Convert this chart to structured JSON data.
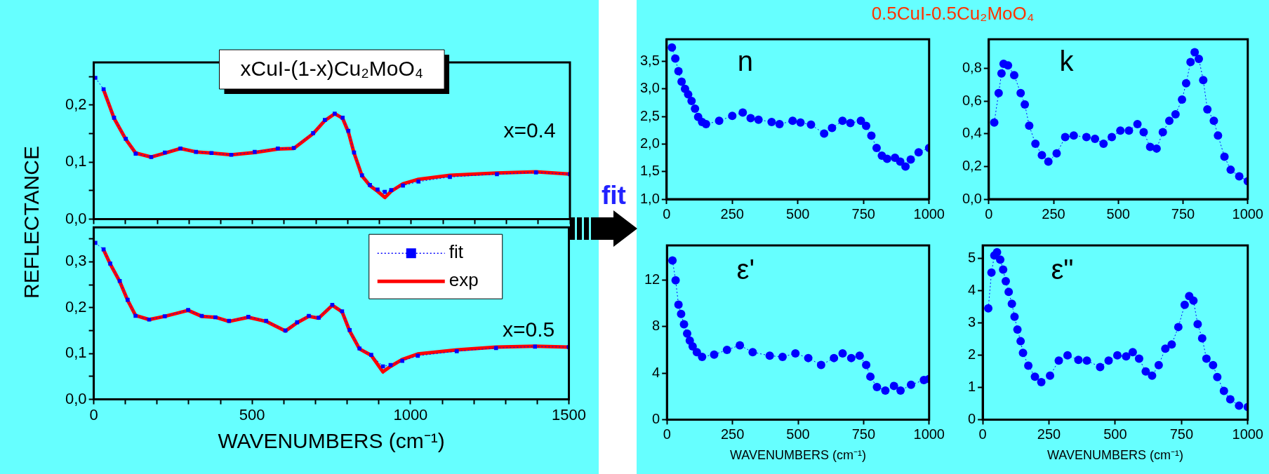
{
  "chart_data": [
    {
      "type": "line",
      "title": "xCuI-(1-x)Cu₂MoO₄",
      "ylabel": "REFLECTANCE",
      "annotations": [
        "x=0.4"
      ],
      "tick_labels": "y",
      "xlim": [
        0,
        1500
      ],
      "ylim": [
        0,
        0.275
      ],
      "xticks": [
        0,
        {
          "value": 100,
          "label": null
        },
        {
          "value": 200,
          "label": null
        },
        {
          "value": 300,
          "label": null
        },
        {
          "value": 400,
          "label": null
        },
        500,
        {
          "value": 600,
          "label": null
        },
        {
          "value": 700,
          "label": null
        },
        {
          "value": 800,
          "label": null
        },
        {
          "value": 900,
          "label": null
        },
        1000,
        {
          "value": 1100,
          "label": null
        },
        {
          "value": 1200,
          "label": null
        },
        {
          "value": 1300,
          "label": null
        },
        {
          "value": 1400,
          "label": null
        },
        1500
      ],
      "yticks": [
        {
          "value": 0,
          "label": "0,0"
        },
        {
          "value": 0.05,
          "label": null
        },
        {
          "value": 0.1,
          "label": "0,1"
        },
        {
          "value": 0.15,
          "label": null
        },
        {
          "value": 0.2,
          "label": "0,2"
        },
        {
          "value": 0.25,
          "label": null
        }
      ],
      "x": [
        5,
        31,
        64,
        101,
        132,
        181,
        224,
        273,
        322,
        371,
        433,
        507,
        580,
        630,
        691,
        728,
        759,
        784,
        802,
        820,
        845,
        870,
        894,
        917,
        937,
        974,
        1023,
        1122,
        1270,
        1393,
        1500
      ],
      "series": [
        {
          "color": "#0000ff",
          "marker": "square",
          "line_style": "dotted",
          "values": [
            0.248,
            0.228,
            0.178,
            0.141,
            0.115,
            0.109,
            0.117,
            0.124,
            0.118,
            0.116,
            0.113,
            0.118,
            0.124,
            0.125,
            0.151,
            0.174,
            0.185,
            0.178,
            0.155,
            0.117,
            0.077,
            0.06,
            0.052,
            0.048,
            0.051,
            0.059,
            0.066,
            0.074,
            0.079,
            0.082,
            0.079
          ]
        },
        {
          "color": "#ff0000",
          "marker": "none",
          "line_style": "solid",
          "values": [
            null,
            0.227,
            0.177,
            0.14,
            0.116,
            0.109,
            0.116,
            0.124,
            0.118,
            0.116,
            0.113,
            0.117,
            0.123,
            0.124,
            0.15,
            0.173,
            0.185,
            0.177,
            0.153,
            0.116,
            0.076,
            0.059,
            0.049,
            0.038,
            0.049,
            0.062,
            0.07,
            0.077,
            0.081,
            0.083,
            0.079
          ]
        }
      ]
    },
    {
      "type": "line",
      "xlabel": "WAVENUMBERS (cm⁻¹)",
      "annotations": [
        "x=0.5",
        "fit"
      ],
      "legend": "top right",
      "xlim": [
        0,
        1500
      ],
      "ylim": [
        0,
        0.375
      ],
      "xticks": [
        0,
        {
          "value": 100,
          "label": null
        },
        {
          "value": 200,
          "label": null
        },
        {
          "value": 300,
          "label": null
        },
        {
          "value": 400,
          "label": null
        },
        500,
        {
          "value": 600,
          "label": null
        },
        {
          "value": 700,
          "label": null
        },
        {
          "value": 800,
          "label": null
        },
        {
          "value": 900,
          "label": null
        },
        1000,
        {
          "value": 1100,
          "label": null
        },
        {
          "value": 1200,
          "label": null
        },
        {
          "value": 1300,
          "label": null
        },
        {
          "value": 1400,
          "label": null
        },
        1500
      ],
      "yticks": [
        {
          "value": 0,
          "label": "0,0"
        },
        {
          "value": 0.05,
          "label": null
        },
        {
          "value": 0.1,
          "label": "0,1"
        },
        {
          "value": 0.15,
          "label": null
        },
        {
          "value": 0.2,
          "label": "0,2"
        },
        {
          "value": 0.25,
          "label": null
        },
        {
          "value": 0.3,
          "label": "0,3"
        },
        {
          "value": 0.35,
          "label": null
        }
      ],
      "x": [
        5,
        31,
        52,
        82,
        107,
        132,
        175,
        224,
        298,
        341,
        384,
        427,
        488,
        544,
        605,
        642,
        679,
        710,
        753,
        784,
        808,
        839,
        876,
        913,
        937,
        974,
        1023,
        1146,
        1270,
        1393,
        1500
      ],
      "series": [
        {
          "name": "fit",
          "color": "#0000ff",
          "marker": "square",
          "line_style": "dotted",
          "values": [
            0.341,
            0.327,
            0.296,
            0.258,
            0.217,
            0.182,
            0.174,
            0.181,
            0.195,
            0.182,
            0.179,
            0.171,
            0.18,
            0.171,
            0.15,
            0.168,
            0.182,
            0.178,
            0.206,
            0.192,
            0.151,
            0.111,
            0.097,
            0.072,
            0.075,
            0.084,
            0.095,
            0.105,
            0.112,
            0.115,
            0.114
          ]
        },
        {
          "name": "exp",
          "color": "#ff0000",
          "marker": "none",
          "line_style": "solid",
          "values": [
            null,
            0.326,
            0.295,
            0.257,
            0.216,
            0.183,
            0.174,
            0.181,
            0.194,
            0.181,
            0.179,
            0.17,
            0.179,
            0.17,
            0.149,
            0.167,
            0.181,
            0.177,
            0.205,
            0.191,
            0.149,
            0.11,
            0.096,
            0.06,
            0.072,
            0.087,
            0.099,
            0.108,
            0.114,
            0.116,
            0.114
          ]
        }
      ]
    },
    {
      "type": "line",
      "title": "0.5CuI-0.5Cu₂MoO₄",
      "annotations": [
        "n"
      ],
      "xlim": [
        0,
        1000
      ],
      "ylim": [
        1,
        3.9
      ],
      "xticks": [
        0,
        250,
        500,
        750,
        1000
      ],
      "yticks": [
        {
          "value": 1,
          "label": "1,0"
        },
        {
          "value": 1.5,
          "label": "1,5"
        },
        {
          "value": 2,
          "label": "2,0"
        },
        {
          "value": 2.5,
          "label": "2,5"
        },
        {
          "value": 3,
          "label": "3,0"
        },
        {
          "value": 3.5,
          "label": "3,5"
        }
      ],
      "x": [
        20,
        33,
        45,
        57,
        70,
        82,
        95,
        108,
        120,
        135,
        150,
        200,
        250,
        290,
        320,
        350,
        400,
        430,
        480,
        510,
        550,
        600,
        630,
        670,
        700,
        740,
        760,
        780,
        800,
        820,
        840,
        870,
        890,
        910,
        930,
        960,
        1000
      ],
      "series": [
        {
          "color": "#0000ff",
          "marker": "circle",
          "line_style": "dotted",
          "values": [
            3.75,
            3.55,
            3.32,
            3.13,
            3.0,
            2.9,
            2.78,
            2.64,
            2.49,
            2.4,
            2.36,
            2.42,
            2.51,
            2.57,
            2.47,
            2.44,
            2.4,
            2.36,
            2.42,
            2.39,
            2.35,
            2.19,
            2.29,
            2.42,
            2.38,
            2.42,
            2.33,
            2.15,
            1.93,
            1.79,
            1.73,
            1.75,
            1.68,
            1.59,
            1.72,
            1.85,
            1.93
          ]
        }
      ]
    },
    {
      "type": "line",
      "annotations": [
        "k"
      ],
      "xlim": [
        0,
        1000
      ],
      "ylim": [
        0,
        0.98
      ],
      "xticks": [
        0,
        250,
        500,
        750,
        1000
      ],
      "yticks": [
        {
          "value": 0,
          "label": "0,0"
        },
        {
          "value": 0.2,
          "label": "0,2"
        },
        {
          "value": 0.4,
          "label": "0,4"
        },
        {
          "value": 0.6,
          "label": "0,6"
        },
        {
          "value": 0.8,
          "label": "0,8"
        }
      ],
      "x": [
        21,
        38,
        49,
        57,
        74,
        98,
        123,
        139,
        156,
        180,
        205,
        230,
        262,
        295,
        328,
        377,
        410,
        443,
        475,
        508,
        541,
        574,
        598,
        623,
        648,
        672,
        697,
        721,
        746,
        762,
        779,
        795,
        811,
        828,
        844,
        869,
        885,
        910,
        934,
        967,
        1000
      ],
      "series": [
        {
          "color": "#0000ff",
          "marker": "circle",
          "line_style": "dotted",
          "values": [
            0.47,
            0.65,
            0.77,
            0.83,
            0.82,
            0.76,
            0.65,
            0.58,
            0.45,
            0.34,
            0.27,
            0.23,
            0.28,
            0.38,
            0.39,
            0.38,
            0.37,
            0.34,
            0.38,
            0.42,
            0.42,
            0.46,
            0.41,
            0.32,
            0.31,
            0.41,
            0.48,
            0.52,
            0.61,
            0.71,
            0.84,
            0.9,
            0.86,
            0.73,
            0.55,
            0.48,
            0.39,
            0.26,
            0.18,
            0.14,
            0.11
          ]
        }
      ]
    },
    {
      "type": "line",
      "xlabel": "WAVENUMBERS (cm⁻¹)",
      "annotations": [
        "ε'"
      ],
      "xlim": [
        0,
        1000
      ],
      "ylim": [
        0,
        15
      ],
      "xticks": [
        0,
        250,
        500,
        750,
        1000
      ],
      "yticks": [
        0,
        4,
        8,
        12
      ],
      "x": [
        21,
        33,
        44,
        54,
        65,
        77,
        87,
        98,
        114,
        134,
        180,
        229,
        278,
        327,
        392,
        441,
        490,
        539,
        588,
        637,
        670,
        703,
        735,
        760,
        776,
        801,
        833,
        866,
        891,
        931,
        980,
        1000
      ],
      "series": [
        {
          "color": "#0000ff",
          "marker": "circle",
          "line_style": "dotted",
          "values": [
            13.7,
            12.0,
            9.9,
            9.1,
            8.2,
            7.4,
            6.8,
            6.3,
            5.8,
            5.4,
            5.6,
            6.0,
            6.4,
            5.8,
            5.5,
            5.4,
            5.7,
            5.3,
            4.7,
            5.3,
            5.7,
            5.3,
            5.5,
            4.7,
            3.7,
            2.8,
            2.5,
            2.9,
            2.5,
            3.0,
            3.4,
            3.5
          ]
        }
      ]
    },
    {
      "type": "line",
      "xlabel": "WAVENUMBERS (cm⁻¹)",
      "annotations": [
        "ε\""
      ],
      "xlim": [
        0,
        1000
      ],
      "ylim": [
        0,
        5.4
      ],
      "xticks": [
        0,
        250,
        500,
        750,
        1000
      ],
      "yticks": [
        0,
        1,
        2,
        3,
        4,
        5
      ],
      "x": [
        21,
        33,
        44,
        54,
        66,
        77,
        87,
        98,
        110,
        120,
        131,
        143,
        152,
        172,
        197,
        221,
        254,
        287,
        320,
        361,
        393,
        443,
        475,
        508,
        541,
        566,
        590,
        615,
        639,
        664,
        689,
        713,
        738,
        762,
        779,
        795,
        811,
        828,
        844,
        869,
        885,
        910,
        934,
        967,
        1000
      ],
      "series": [
        {
          "color": "#0000ff",
          "marker": "circle",
          "line_style": "dotted",
          "values": [
            3.45,
            4.56,
            5.09,
            5.19,
            4.96,
            4.65,
            4.29,
            3.96,
            3.59,
            3.19,
            2.79,
            2.43,
            2.07,
            1.67,
            1.33,
            1.16,
            1.36,
            1.83,
            1.99,
            1.85,
            1.83,
            1.63,
            1.83,
            1.99,
            1.96,
            2.09,
            1.89,
            1.49,
            1.36,
            1.69,
            2.2,
            2.33,
            2.87,
            3.56,
            3.83,
            3.69,
            2.96,
            2.52,
            1.89,
            1.69,
            1.32,
            0.89,
            0.63,
            0.43,
            0.39
          ]
        }
      ]
    }
  ]
}
